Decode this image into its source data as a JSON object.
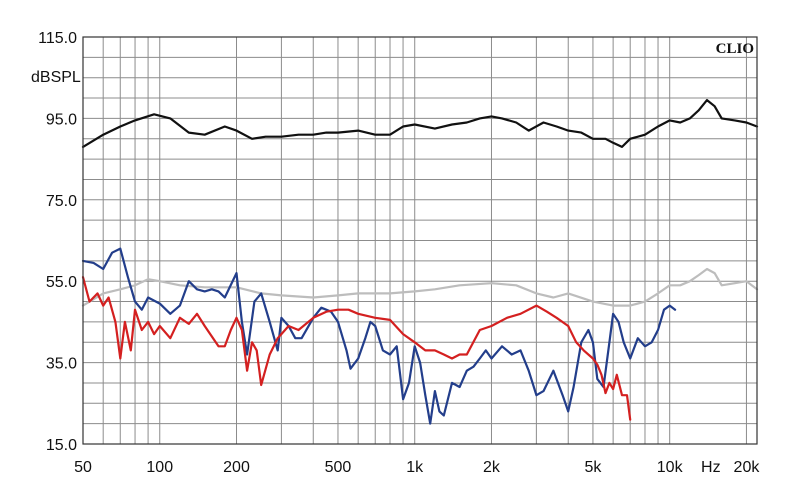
{
  "chart_data": {
    "type": "line",
    "title": "",
    "brand": "CLIO",
    "ylabel": "dBSPL",
    "xlabel": "Hz",
    "x_scale": "log",
    "xlim": [
      50,
      22000
    ],
    "ylim": [
      15,
      115
    ],
    "y_ticks": [
      {
        "value": 115,
        "label": "115.0"
      },
      {
        "value": 95,
        "label": "95.0"
      },
      {
        "value": 75,
        "label": "75.0"
      },
      {
        "value": 55,
        "label": "55.0"
      },
      {
        "value": 35,
        "label": "35.0"
      },
      {
        "value": 15,
        "label": "15.0"
      }
    ],
    "x_ticks": [
      {
        "value": 50,
        "label": "50"
      },
      {
        "value": 100,
        "label": "100"
      },
      {
        "value": 200,
        "label": "200"
      },
      {
        "value": 500,
        "label": "500"
      },
      {
        "value": 1000,
        "label": "1k"
      },
      {
        "value": 2000,
        "label": "2k"
      },
      {
        "value": 5000,
        "label": "5k"
      },
      {
        "value": 10000,
        "label": "10k"
      },
      {
        "value": 20000,
        "label": "20k"
      }
    ],
    "grid": true,
    "series": [
      {
        "color": "#111111",
        "x": [
          50,
          60,
          70,
          80,
          95,
          110,
          130,
          150,
          180,
          200,
          230,
          260,
          300,
          350,
          400,
          450,
          500,
          600,
          700,
          800,
          900,
          1000,
          1200,
          1400,
          1600,
          1800,
          2000,
          2200,
          2500,
          2800,
          3200,
          3600,
          4000,
          4500,
          5000,
          5600,
          6000,
          6500,
          7000,
          8000,
          9000,
          10000,
          11000,
          12000,
          13000,
          14000,
          15000,
          16000,
          18000,
          20000,
          22000
        ],
        "y": [
          88,
          91,
          93,
          94.5,
          96,
          95,
          91.5,
          91,
          93,
          92,
          90,
          90.5,
          90.5,
          91,
          91,
          91.5,
          91.5,
          92,
          91,
          91,
          93,
          93.5,
          92.5,
          93.5,
          94,
          95,
          95.5,
          95,
          94,
          92,
          94,
          93,
          92,
          91.5,
          90,
          90,
          89,
          88,
          90,
          91,
          93,
          94.5,
          94,
          95,
          97,
          99.5,
          98,
          95,
          94.5,
          94,
          93
        ]
      },
      {
        "color": "#bdbdbd",
        "x": [
          50,
          60,
          70,
          80,
          90,
          100,
          120,
          150,
          200,
          250,
          300,
          400,
          500,
          600,
          700,
          800,
          1000,
          1200,
          1500,
          2000,
          2500,
          3000,
          3500,
          4000,
          5000,
          6000,
          7000,
          8000,
          9000,
          10000,
          11000,
          12000,
          13000,
          14000,
          15000,
          16000,
          18000,
          20000,
          22000
        ],
        "y": [
          49,
          52,
          53,
          54,
          55.5,
          55,
          54,
          53.5,
          53.5,
          52,
          51.5,
          51,
          51.5,
          52,
          52,
          52,
          52.5,
          53,
          54,
          54.5,
          54,
          52,
          51,
          52,
          50,
          49,
          49,
          50,
          52,
          54,
          54,
          55,
          56.5,
          58,
          57,
          54,
          54.5,
          55,
          53
        ]
      },
      {
        "color": "#233e8b",
        "x": [
          50,
          55,
          60,
          65,
          70,
          75,
          80,
          85,
          90,
          100,
          110,
          120,
          130,
          140,
          150,
          160,
          170,
          180,
          200,
          210,
          220,
          235,
          250,
          270,
          290,
          300,
          320,
          340,
          360,
          400,
          430,
          470,
          500,
          540,
          560,
          600,
          640,
          670,
          700,
          750,
          800,
          850,
          900,
          950,
          1000,
          1050,
          1100,
          1150,
          1200,
          1250,
          1300,
          1400,
          1500,
          1600,
          1700,
          1800,
          1900,
          2000,
          2200,
          2400,
          2600,
          2800,
          3000,
          3200,
          3500,
          3800,
          4000,
          4200,
          4500,
          4800,
          5000,
          5200,
          5500,
          5800,
          6000,
          6300,
          6600,
          7000,
          7500,
          8000,
          8500,
          9000,
          9500,
          10000,
          10500
        ],
        "y": [
          60,
          59.5,
          58,
          62,
          63,
          56,
          50,
          48,
          51,
          49.5,
          47,
          49,
          55,
          53,
          52.5,
          53,
          52.5,
          51,
          57,
          45,
          37,
          50,
          52,
          45,
          38,
          46,
          44,
          41,
          41,
          46,
          48.5,
          47.5,
          45,
          38,
          33.5,
          36,
          41,
          45,
          44,
          38,
          37,
          39,
          26,
          30,
          39,
          35,
          27,
          20,
          28,
          23,
          22,
          30,
          29,
          33,
          34,
          36,
          38,
          36,
          39,
          37,
          38,
          33,
          27,
          28,
          33,
          27,
          23,
          29,
          40,
          43,
          40,
          31,
          29,
          40,
          47,
          45,
          40,
          36,
          41,
          39,
          40,
          43,
          48,
          49,
          48
        ]
      },
      {
        "color": "#d42020",
        "x": [
          50,
          53,
          57,
          60,
          63,
          67,
          70,
          73,
          77,
          80,
          85,
          90,
          95,
          100,
          110,
          120,
          130,
          140,
          150,
          170,
          180,
          190,
          200,
          210,
          220,
          230,
          240,
          250,
          270,
          290,
          300,
          320,
          350,
          400,
          450,
          500,
          550,
          600,
          700,
          800,
          900,
          1000,
          1100,
          1200,
          1300,
          1400,
          1500,
          1600,
          1800,
          2000,
          2300,
          2600,
          3000,
          3300,
          3600,
          4000,
          4300,
          4600,
          5000,
          5200,
          5400,
          5600,
          5800,
          6000,
          6200,
          6500,
          6800,
          7000
        ],
        "y": [
          56,
          50,
          52,
          49,
          51,
          45,
          36,
          45,
          38,
          48,
          43,
          45,
          42,
          44,
          41,
          46,
          44.5,
          47,
          44,
          39,
          39,
          43,
          46,
          43,
          33,
          40,
          38,
          29.5,
          37,
          41,
          42,
          44,
          43,
          46,
          47.5,
          48,
          48,
          47,
          46,
          45.5,
          42,
          40,
          38,
          38,
          37,
          36,
          37,
          37,
          43,
          44,
          46,
          47,
          49,
          47.5,
          46,
          44,
          40,
          38,
          36,
          34.5,
          32,
          27.5,
          30,
          28.5,
          32,
          27,
          27,
          21
        ]
      }
    ]
  }
}
